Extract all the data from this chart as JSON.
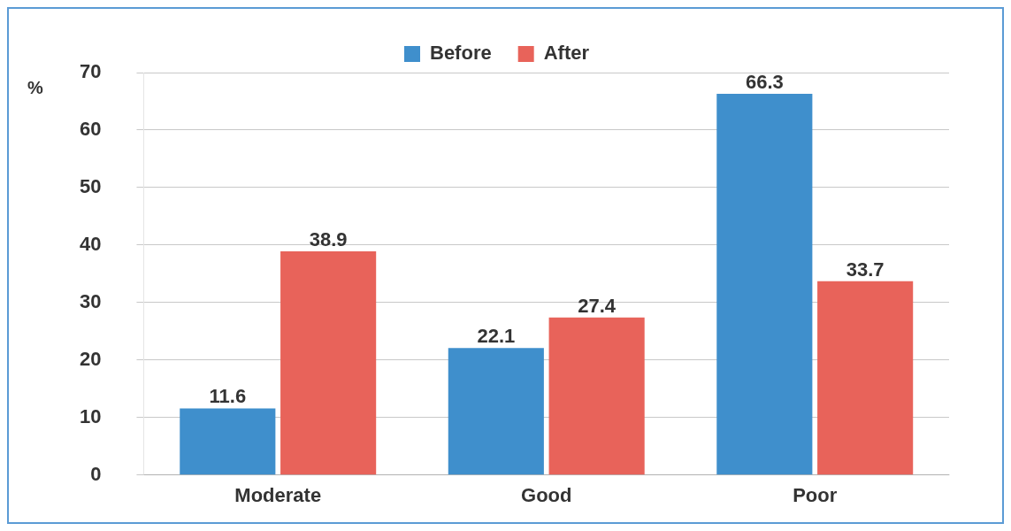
{
  "chart_data": {
    "type": "bar",
    "ylabel": "%",
    "categories": [
      "Moderate",
      "Good",
      "Poor"
    ],
    "series": [
      {
        "name": "Before",
        "color": "#3f8fcc",
        "values": [
          11.6,
          22.1,
          66.3
        ]
      },
      {
        "name": "After",
        "color": "#e8635a",
        "values": [
          38.9,
          27.4,
          33.7
        ]
      }
    ],
    "ylim": [
      0,
      70
    ],
    "yticks": [
      0,
      10,
      20,
      30,
      40,
      50,
      60,
      70
    ],
    "grid": "y",
    "legend": "top",
    "data_labels": true
  }
}
